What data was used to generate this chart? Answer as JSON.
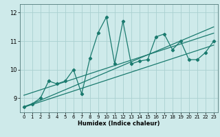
{
  "xlabel": "Humidex (Indice chaleur)",
  "bg_color": "#ceeaea",
  "line_color": "#1a7a6e",
  "grid_color": "#aad0d0",
  "x_data": [
    0,
    1,
    2,
    3,
    4,
    5,
    6,
    7,
    8,
    9,
    10,
    11,
    12,
    13,
    14,
    15,
    16,
    17,
    18,
    19,
    20,
    21,
    22,
    23
  ],
  "y_data": [
    8.7,
    8.8,
    9.0,
    9.6,
    9.5,
    9.6,
    10.0,
    9.15,
    10.4,
    11.3,
    11.85,
    10.2,
    11.7,
    10.2,
    10.3,
    10.35,
    11.15,
    11.25,
    10.7,
    11.0,
    10.35,
    10.35,
    10.6,
    11.0
  ],
  "xlim": [
    -0.5,
    23.5
  ],
  "ylim": [
    8.5,
    12.3
  ],
  "yticks": [
    9,
    10,
    11,
    12
  ],
  "xticks": [
    0,
    1,
    2,
    3,
    4,
    5,
    6,
    7,
    8,
    9,
    10,
    11,
    12,
    13,
    14,
    15,
    16,
    17,
    18,
    19,
    20,
    21,
    22,
    23
  ],
  "trend1": [
    8.68,
    10.86
  ],
  "trend2": [
    9.1,
    11.28
  ],
  "trend3": [
    8.68,
    11.5
  ]
}
